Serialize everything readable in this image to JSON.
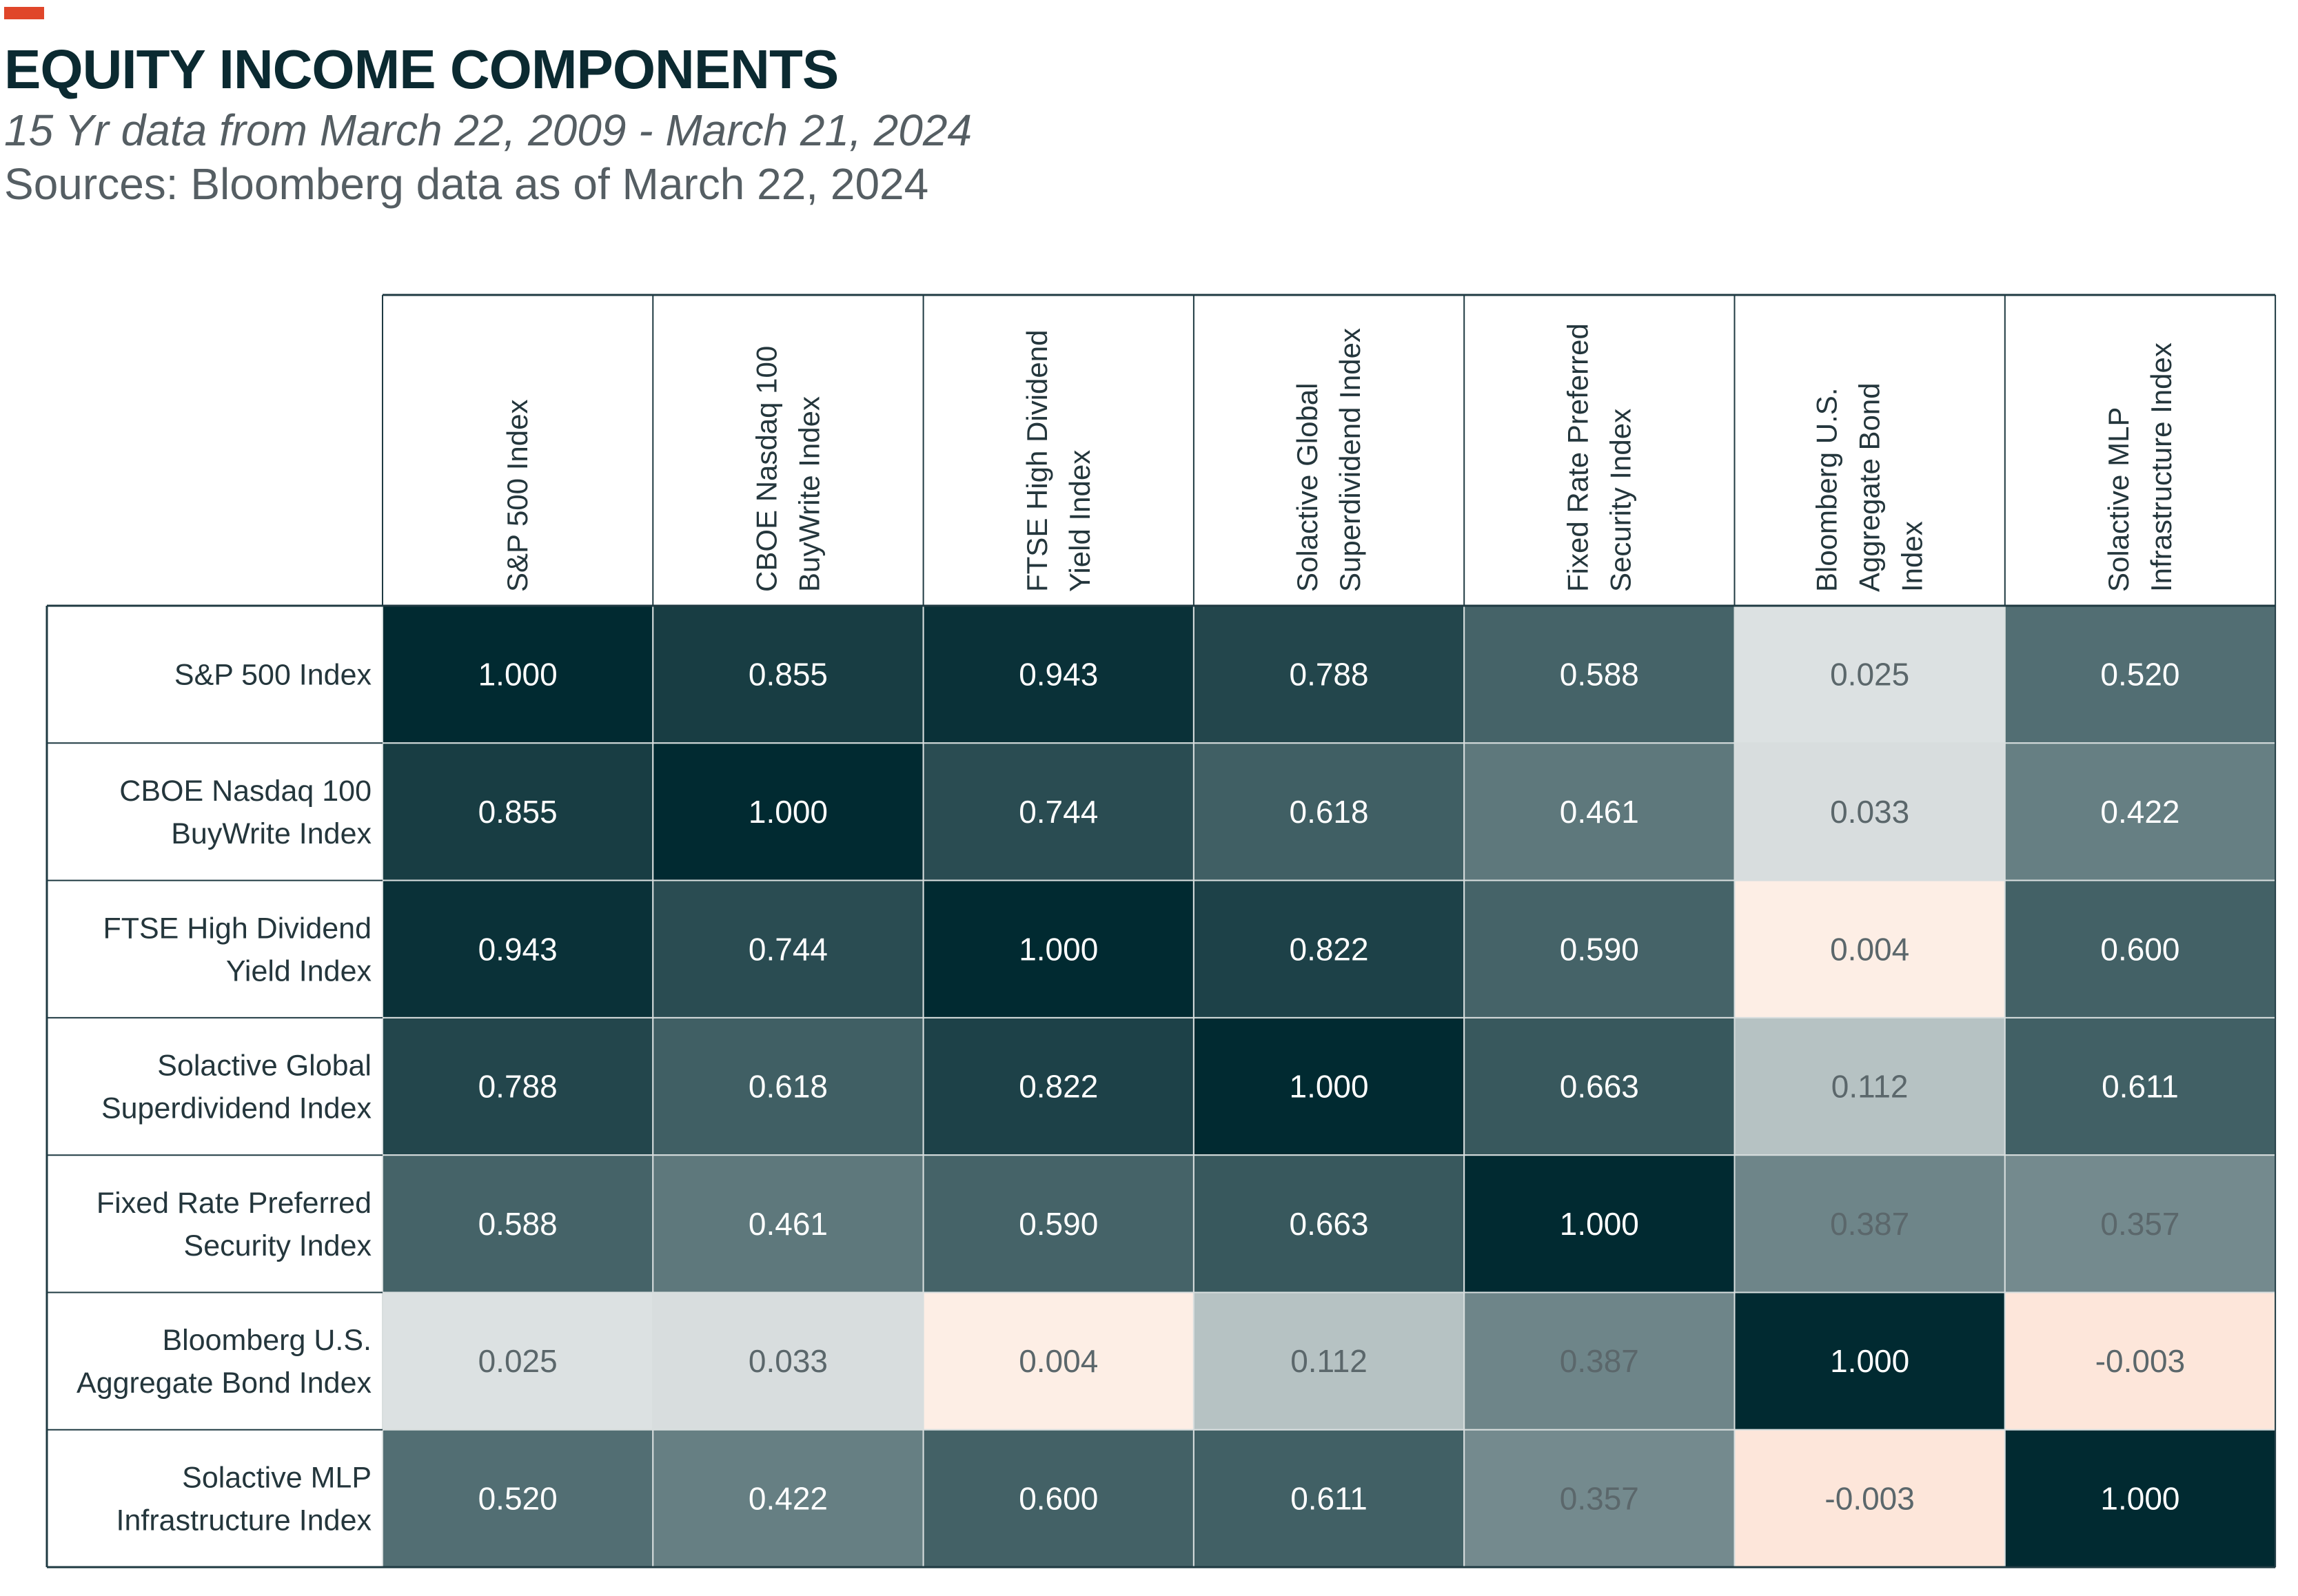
{
  "header": {
    "accent_color": "#e0462a",
    "title": "EQUITY INCOME COMPONENTS",
    "subtitle": "15 Yr data from March 22, 2009 - March 21, 2024",
    "source": "Sources: Bloomberg data as of March 22, 2024"
  },
  "chart_data": {
    "type": "heatmap",
    "title": "EQUITY INCOME COMPONENTS",
    "subtitle": "15 Yr data from March 22, 2009 - March 21, 2024",
    "source": "Sources: Bloomberg data as of March 22, 2024",
    "columns": [
      [
        "S&P 500 Index"
      ],
      [
        "CBOE Nasdaq 100",
        "BuyWrite Index"
      ],
      [
        "FTSE High Dividend",
        "Yield Index"
      ],
      [
        "Solactive Global",
        "Superdividend Index"
      ],
      [
        "Fixed Rate Preferred",
        "Security Index"
      ],
      [
        "Bloomberg U.S.",
        "Aggregate Bond",
        "Index"
      ],
      [
        "Solactive MLP",
        "Infrastructure Index"
      ]
    ],
    "rows": [
      [
        "S&P 500 Index"
      ],
      [
        "CBOE Nasdaq 100",
        "BuyWrite Index"
      ],
      [
        "FTSE High Dividend",
        "Yield Index"
      ],
      [
        "Solactive Global",
        "Superdividend Index"
      ],
      [
        "Fixed Rate Preferred",
        "Security Index"
      ],
      [
        "Bloomberg U.S.",
        "Aggregate Bond Index"
      ],
      [
        "Solactive MLP",
        "Infrastructure Index"
      ]
    ],
    "values": [
      [
        "1.000",
        "0.855",
        "0.943",
        "0.788",
        "0.588",
        "0.025",
        "0.520"
      ],
      [
        "0.855",
        "1.000",
        "0.744",
        "0.618",
        "0.461",
        "0.033",
        "0.422"
      ],
      [
        "0.943",
        "0.744",
        "1.000",
        "0.822",
        "0.590",
        "0.004",
        "0.600"
      ],
      [
        "0.788",
        "0.618",
        "0.822",
        "1.000",
        "0.663",
        "0.112",
        "0.611"
      ],
      [
        "0.588",
        "0.461",
        "0.590",
        "0.663",
        "1.000",
        "0.387",
        "0.357"
      ],
      [
        "0.025",
        "0.033",
        "0.004",
        "0.112",
        "0.387",
        "1.000",
        "-0.003"
      ],
      [
        "0.520",
        "0.422",
        "0.600",
        "0.611",
        "0.357",
        "-0.003",
        "1.000"
      ]
    ],
    "color_scale": {
      "high": "#012a31",
      "low": "#f5f6f6",
      "near_zero": "#fdeee5",
      "negative": "#fde6da",
      "grid": "#d8dede",
      "border": "#1f3a42",
      "light_text": "#ffffff",
      "dark_text": "#5b676b"
    }
  }
}
